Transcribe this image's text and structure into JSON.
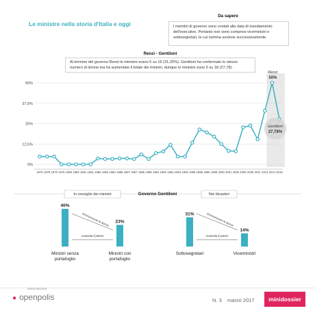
{
  "page": {
    "title": "Le ministre nella storia d'Italia e oggi",
    "sapere_head": "Da sapere",
    "sapere_text": "I membri di governo sono contati alla data di insediamento dell'esecutivo. Pertanto non sono compresi viceministri e sottosegretari, la cui nomina avviene successivamente.",
    "renzi_head": "Renzi - Gentiloni",
    "renzi_text": "Al termine del governo Renzi le ministre erano 5 su 16 (31,25%). Gentiloni ha confermato lo stesso numero di donne ma ha aumentato il totale dei ministri, dunque le ministre sono 5 su 18 (27,78)."
  },
  "colors": {
    "accent": "#3bb0c2",
    "grid": "#d9d9d9",
    "brand": "#e0245e",
    "highlight": "#e0e0e0"
  },
  "chart_data": [
    {
      "type": "line",
      "x": [
        "1976",
        "1978",
        "1979",
        "1979",
        "1980",
        "1980",
        "1981",
        "1981",
        "1982",
        "1983",
        "1983",
        "1986",
        "1987",
        "1987",
        "1988",
        "1989",
        "1991",
        "1992",
        "1993",
        "1994",
        "1995",
        "1996",
        "1998",
        "1998",
        "1999",
        "2000",
        "2001",
        "2005",
        "2006",
        "2008",
        "2011",
        "2013",
        "2014",
        "2016"
      ],
      "x_ticks": [
        "1976",
        "1978",
        "1979",
        "1979",
        "1980",
        "1980",
        "1981",
        "1981",
        "1982",
        "1983",
        "1983",
        "1986",
        "1987",
        "1987",
        "1988",
        "1989",
        "1991",
        "1992",
        "1993",
        "1994",
        "1995",
        "1996",
        "1998",
        "1998",
        "1999",
        "2000",
        "2001",
        "2005",
        "2006",
        "2008",
        "2011",
        "2013",
        "2014",
        "2016"
      ],
      "values": [
        4.8,
        4.8,
        4.8,
        0,
        0,
        0,
        0,
        0,
        3.6,
        3.3,
        3.3,
        3.6,
        3.6,
        3.3,
        6.1,
        3.3,
        6.9,
        7.9,
        12,
        4.8,
        4.8,
        13.3,
        21.4,
        19.6,
        17.1,
        12.5,
        8.3,
        8,
        22.7,
        23.8,
        15.4,
        32.9,
        50,
        27.78
      ],
      "yticks": [
        "0%",
        "12,5%",
        "25%",
        "37,5%",
        "50%"
      ],
      "ylim": [
        0,
        50
      ],
      "annotations": [
        {
          "label": "Renzi",
          "value": "50%"
        },
        {
          "label": "Gentiloni",
          "value": "27,78%"
        }
      ]
    },
    {
      "type": "bar",
      "title": "Governo Gentiloni",
      "panels": [
        {
          "label": "In consiglio dei ministri",
          "categories": [
            "Ministri senza portafoglio",
            "Ministri con portafoglio"
          ],
          "values": [
            40,
            23
          ],
          "value_labels": [
            "40%",
            "23%"
          ],
          "note_top": "Diminuiscono le donne",
          "note_bottom": "Aumenta il potere"
        },
        {
          "label": "Nei dicasteri",
          "categories": [
            "Sottosegretari",
            "Viceministri"
          ],
          "values": [
            31,
            14
          ],
          "value_labels": [
            "31%",
            "14%"
          ],
          "note_top": "Diminuiscono le donne",
          "note_bottom": "Aumenta il potere"
        }
      ]
    }
  ],
  "footer": {
    "logo_small": "associazione",
    "logo": "openpolis",
    "issue": "N. 3",
    "date": "marzo 2017",
    "badge": "minidossier"
  }
}
